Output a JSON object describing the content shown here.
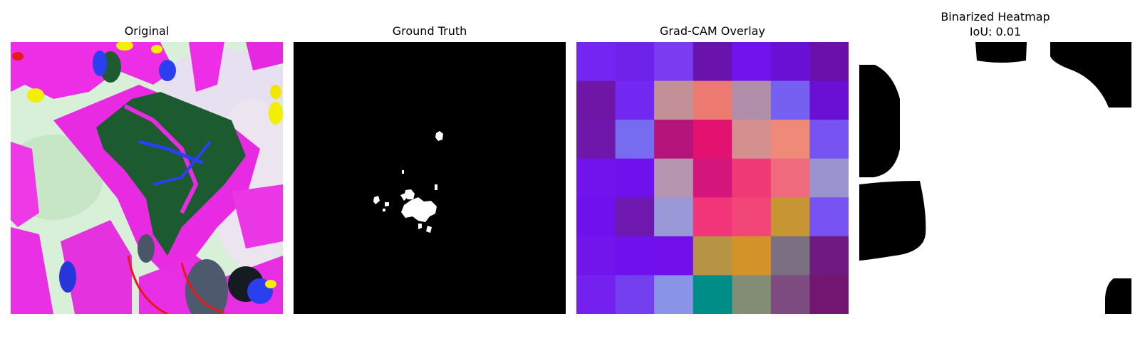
{
  "panels": {
    "original": {
      "title": "Original"
    },
    "ground_truth": {
      "title": "Ground Truth"
    },
    "gradcam": {
      "title": "Grad-CAM Overlay",
      "grid": [
        [
          "#7425f2",
          "#6e22ea",
          "#7a3cee",
          "#6a13ac",
          "#7212ec",
          "#6a10d4",
          "#6a0fa8"
        ],
        [
          "#6f16a7",
          "#7228f0",
          "#c39097",
          "#ed7a70",
          "#b08ea9",
          "#7560f2",
          "#6a10d4"
        ],
        [
          "#6f17ab",
          "#766cef",
          "#b5157a",
          "#e31270",
          "#d48f8f",
          "#ef8a78",
          "#7753f1"
        ],
        [
          "#7212ec",
          "#7010ec",
          "#b596b0",
          "#d4157c",
          "#f03a78",
          "#f06a7e",
          "#9994cf"
        ],
        [
          "#7010ec",
          "#6e18b0",
          "#9a98d6",
          "#f23478",
          "#f34678",
          "#c79533",
          "#7652f3"
        ],
        [
          "#7214ec",
          "#7010ec",
          "#7210ec",
          "#b79345",
          "#d49328",
          "#7a7082",
          "#6e1a80"
        ],
        [
          "#7421f0",
          "#7440ef",
          "#8a94e6",
          "#008c87",
          "#838d75",
          "#7f4c82",
          "#731672"
        ]
      ]
    },
    "binarized": {
      "title_line1": "Binarized Heatmap",
      "title_line2": "IoU: 0.01"
    }
  }
}
